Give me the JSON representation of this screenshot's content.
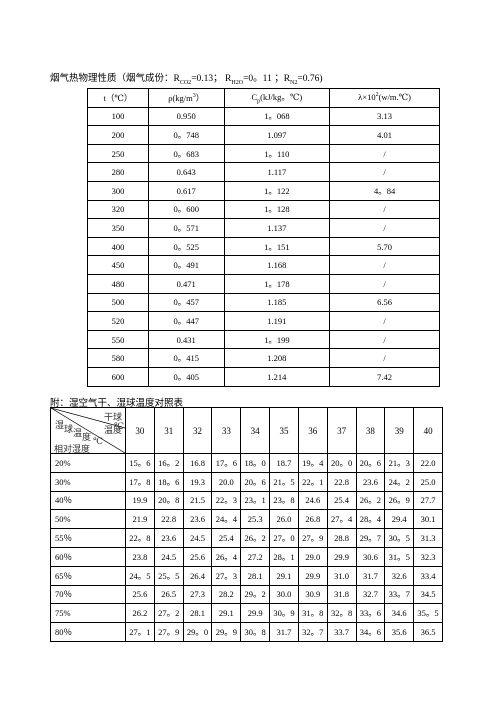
{
  "document": {
    "title": {
      "pre": "烟气热物理性质（烟气成份：R",
      "s1": "CO2",
      "m1": "=0.13；  R",
      "s2": "H2O",
      "m2": "=0。11 ；R",
      "s3": "N2",
      "post": "=0.76)"
    },
    "table1": {
      "header": [
        {
          "pre": "t（℃）"
        },
        {
          "pre": "ρ(kg/m",
          "sup": "3",
          "post": "）"
        },
        {
          "pre": "C",
          "sub": "p",
          "post": "(kJ/kg。℃)"
        },
        {
          "pre": "λ×10",
          "sup": "2",
          "post": "(w/m.℃)"
        }
      ],
      "rows": [
        [
          "100",
          "0.950",
          "1。068",
          "3.13"
        ],
        [
          "200",
          "0。748",
          "1.097",
          "4.01"
        ],
        [
          "250",
          "0。683",
          "1。110",
          "/"
        ],
        [
          "280",
          "0.643",
          "1.117",
          "/"
        ],
        [
          "300",
          "0.617",
          "1。122",
          "4。84"
        ],
        [
          "320",
          "0。600",
          "1。128",
          "/"
        ],
        [
          "350",
          "0。571",
          "1.137",
          "/"
        ],
        [
          "400",
          "0。525",
          "1。151",
          "5.70"
        ],
        [
          "450",
          "0。491",
          "1.168",
          "/"
        ],
        [
          "480",
          "0.471",
          "1。178",
          "/"
        ],
        [
          "500",
          "0。457",
          "1.185",
          "6.56"
        ],
        [
          "520",
          "0。447",
          "1.191",
          "/"
        ],
        [
          "550",
          "0.431",
          "1。199",
          "/"
        ],
        [
          "580",
          "0。415",
          "1.208",
          "/"
        ],
        [
          "600",
          "0。405",
          "1.214",
          "7.42"
        ]
      ]
    },
    "caption": "附：湿空气干、湿球温度对照表",
    "table2": {
      "corner": {
        "dry": "干球温度",
        "wet": [
          "湿",
          "球",
          "温",
          "度"
        ],
        "unit1": "℃",
        "unit2": "℃",
        "rh": "相对湿度"
      },
      "columns": [
        "30",
        "31",
        "32",
        "33",
        "34",
        "35",
        "36",
        "37",
        "38",
        "39",
        "40"
      ],
      "rows": [
        {
          "label": "20%",
          "values": [
            "15。6",
            "16。2",
            "16.8",
            "17。6",
            "18。0",
            "18.7",
            "19。4",
            "20。0",
            "20。6",
            "21。3",
            "22.0"
          ]
        },
        {
          "label": "30%",
          "values": [
            "17。8",
            "18。6",
            "19.3",
            "20.0",
            "20。6",
            "21。5",
            "22。1",
            "22.8",
            "23.6",
            "24。2",
            "25.0"
          ]
        },
        {
          "label": "40％",
          "values": [
            "19.9",
            "20。8",
            "21.5",
            "22。3",
            "23。1",
            "23。8",
            "24.6",
            "25.4",
            "26。2",
            "26。9",
            "27.7"
          ]
        },
        {
          "label": "50%",
          "values": [
            "21.9",
            "22.8",
            "23.6",
            "24。4",
            "25.3",
            "26.0",
            "26.8",
            "27。4",
            "28。4",
            "29.4",
            "30.1"
          ]
        },
        {
          "label": "55％",
          "values": [
            "22。8",
            "23.6",
            "24.5",
            "25.4",
            "26。2",
            "27。0",
            "27。9",
            "28.8",
            "29。7",
            "30。5",
            "31.3"
          ]
        },
        {
          "label": "60％",
          "values": [
            "23.8",
            "24.5",
            "25.6",
            "26。4",
            "27.2",
            "28。1",
            "29.0",
            "29.9",
            "30.6",
            "31。5",
            "32.3"
          ]
        },
        {
          "label": "65％",
          "values": [
            "24。5",
            "25。5",
            "26.4",
            "27。3",
            "28.1",
            "29.1",
            "29.9",
            "31.0",
            "31.7",
            "32.6",
            "33.4"
          ]
        },
        {
          "label": "70％",
          "values": [
            "25.6",
            "26.5",
            "27.3",
            "28.2",
            "29。2",
            "30.0",
            "30.9",
            "31.8",
            "32.7",
            "33。7",
            "34.5"
          ]
        },
        {
          "label": "75%",
          "values": [
            "26.2",
            "27。2",
            "28.1",
            "29.1",
            "29.9",
            "30。9",
            "31。8",
            "32。8",
            "33。6",
            "34.6",
            "35。5"
          ]
        },
        {
          "label": "80％",
          "values": [
            "27。1",
            "27。9",
            "29。0",
            "29。9",
            "30。8",
            "31.7",
            "32。7",
            "33.7",
            "34。6",
            "35.6",
            "36.5"
          ]
        }
      ]
    }
  }
}
